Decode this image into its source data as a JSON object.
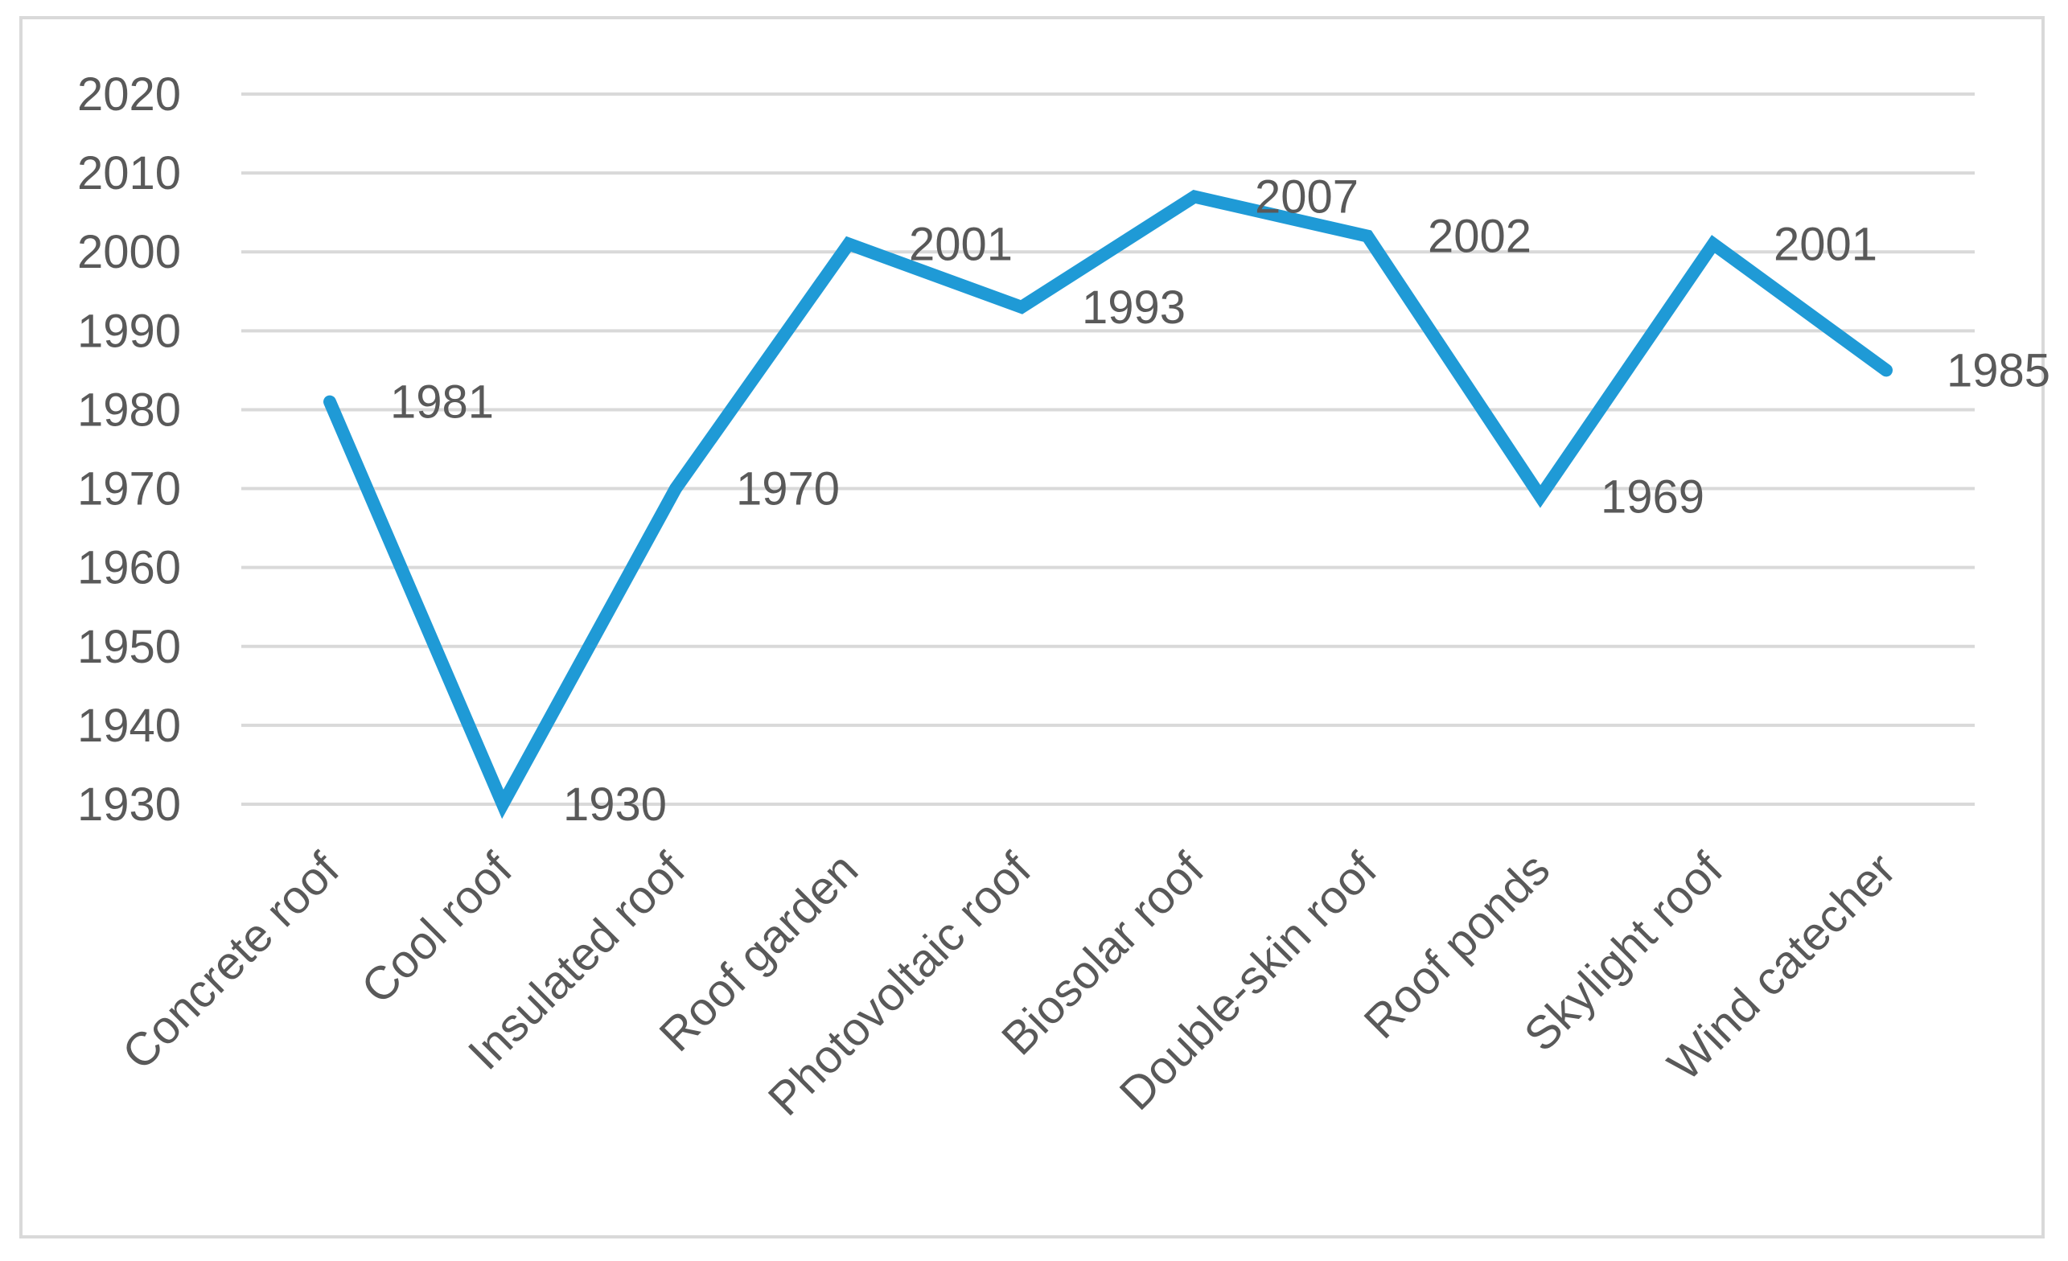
{
  "chart_data": {
    "type": "line",
    "title": "",
    "xlabel": "",
    "ylabel": "",
    "categories": [
      "Concrete roof",
      "Cool roof",
      "Insulated roof",
      "Roof garden",
      "Photovoltaic roof",
      "Biosolar roof",
      "Double-skin roof",
      "Roof ponds",
      "Skylight roof",
      "Wind catecher"
    ],
    "series": [
      {
        "values": [
          1981,
          1930,
          1970,
          2001,
          1993,
          2007,
          2002,
          1969,
          2001,
          1985
        ]
      }
    ],
    "ylim": [
      1930,
      2020
    ],
    "yticks": [
      1930,
      1940,
      1950,
      1960,
      1970,
      1980,
      1990,
      2000,
      2010,
      2020
    ],
    "grid": true,
    "legend": "none",
    "data_labels": true
  },
  "colors": {
    "line": "#1f9ad6",
    "grid": "#d9d9d9",
    "text": "#595959",
    "border": "#d9d9d9"
  }
}
